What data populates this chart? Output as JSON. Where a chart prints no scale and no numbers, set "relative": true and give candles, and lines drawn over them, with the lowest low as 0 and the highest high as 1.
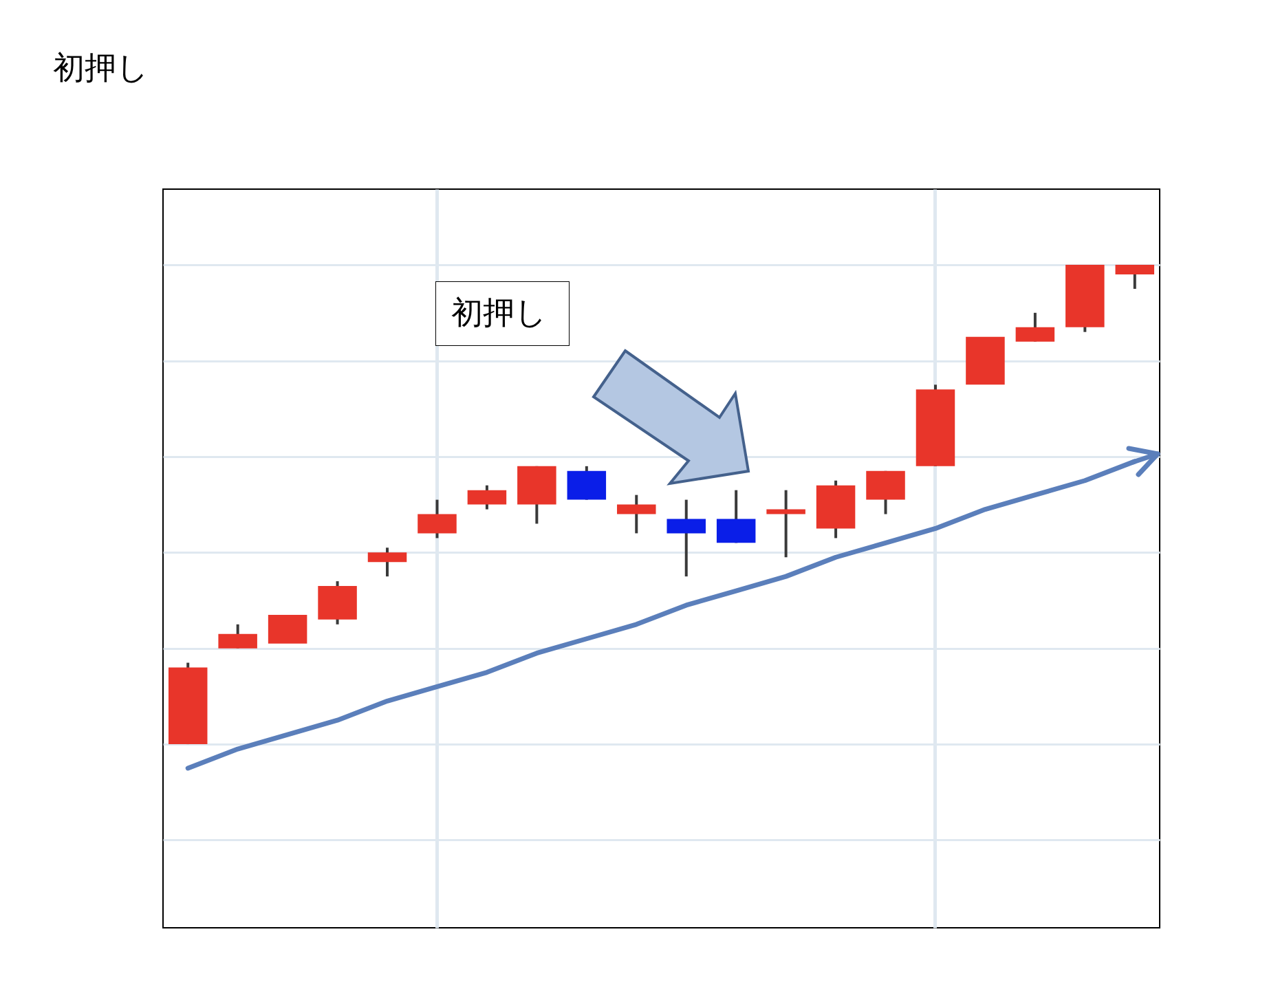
{
  "chart_data": {
    "type": "candlestick",
    "title": "初押し",
    "relative": true,
    "grid": true,
    "tick_labels": false,
    "series": [
      {
        "type": "line",
        "color": "#5b7fbb",
        "values": [
          -0.05,
          -0.01,
          0.02,
          0.05,
          0.09,
          0.12,
          0.15,
          0.19,
          0.22,
          0.25,
          0.29,
          0.32,
          0.35,
          0.39,
          0.42,
          0.45,
          0.49,
          0.52,
          0.55,
          0.59
        ]
      }
    ],
    "categories": [
      null,
      null,
      null,
      null,
      null,
      null,
      null,
      null,
      null,
      null,
      null,
      null,
      null,
      null,
      null,
      null,
      null,
      null,
      null,
      null
    ],
    "ohlc": [
      [
        0,
        0.17,
        0,
        0.16
      ],
      [
        0.2,
        0.25,
        0.2,
        0.23
      ],
      [
        0.21,
        0.27,
        0.21,
        0.27
      ],
      [
        0.26,
        0.34,
        0.25,
        0.33
      ],
      [
        0.38,
        0.41,
        0.35,
        0.4
      ],
      [
        0.44,
        0.51,
        0.43,
        0.48
      ],
      [
        0.5,
        0.54,
        0.49,
        0.53
      ],
      [
        0.5,
        0.58,
        0.46,
        0.58
      ],
      [
        0.57,
        0.58,
        0.51,
        0.51
      ],
      [
        0.48,
        0.52,
        0.44,
        0.5
      ],
      [
        0.47,
        0.51,
        0.35,
        0.44
      ],
      [
        0.47,
        0.53,
        0.42,
        0.42
      ],
      [
        0.48,
        0.53,
        0.39,
        0.49
      ],
      [
        0.45,
        0.55,
        0.43,
        0.54
      ],
      [
        0.51,
        0.57,
        0.48,
        0.57
      ],
      [
        0.58,
        0.75,
        0.58,
        0.74
      ],
      [
        0.75,
        0.85,
        0.75,
        0.85
      ],
      [
        0.84,
        0.9,
        0.84,
        0.87
      ],
      [
        0.87,
        1,
        0.86,
        1
      ],
      [
        0.98,
        1,
        0.95,
        1
      ]
    ],
    "colors": [
      "#e8352a",
      "#e8352a",
      "#e8352a",
      "#e8352a",
      "#e8352a",
      "#e8352a",
      "#e8352a",
      "#e8352a",
      "#0a1ee8",
      "#e8352a",
      "#0a1ee8",
      "#0a1ee8",
      "#e8352a",
      "#e8352a",
      "#e8352a",
      "#e8352a",
      "#e8352a",
      "#e8352a",
      "#e8352a",
      "#e8352a"
    ],
    "annotations": [
      "初押し"
    ]
  }
}
